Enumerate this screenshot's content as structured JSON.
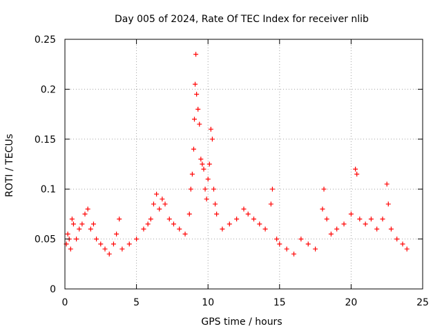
{
  "chart_data": {
    "type": "scatter",
    "title": "Day 005 of 2024, Rate Of TEC Index for receiver nlib",
    "xlabel": "GPS time / hours",
    "ylabel": "ROTI / TECUs",
    "xlim": [
      0,
      25
    ],
    "ylim": [
      0,
      0.25
    ],
    "xticks": [
      0,
      5,
      10,
      15,
      20,
      25
    ],
    "xtick_labels": [
      "0",
      "5",
      "10",
      "15",
      "20",
      "25"
    ],
    "yticks": [
      0,
      0.05,
      0.1,
      0.15,
      0.2,
      0.25
    ],
    "ytick_labels": [
      "0",
      "0.05",
      "0.1",
      "0.15",
      "0.2",
      "0.25"
    ],
    "grid": true,
    "marker": "+",
    "color": "#ff0000",
    "series": [
      {
        "name": "ROTI",
        "points": [
          [
            0.1,
            0.045
          ],
          [
            0.2,
            0.055
          ],
          [
            0.3,
            0.05
          ],
          [
            0.4,
            0.04
          ],
          [
            0.5,
            0.07
          ],
          [
            0.6,
            0.065
          ],
          [
            0.8,
            0.05
          ],
          [
            1.0,
            0.06
          ],
          [
            1.2,
            0.065
          ],
          [
            1.4,
            0.075
          ],
          [
            1.6,
            0.08
          ],
          [
            1.8,
            0.06
          ],
          [
            2.0,
            0.065
          ],
          [
            2.2,
            0.05
          ],
          [
            2.5,
            0.045
          ],
          [
            2.8,
            0.04
          ],
          [
            3.1,
            0.035
          ],
          [
            3.4,
            0.045
          ],
          [
            3.6,
            0.055
          ],
          [
            3.8,
            0.07
          ],
          [
            4.0,
            0.04
          ],
          [
            4.5,
            0.045
          ],
          [
            5.0,
            0.05
          ],
          [
            5.5,
            0.06
          ],
          [
            5.8,
            0.065
          ],
          [
            6.0,
            0.07
          ],
          [
            6.2,
            0.085
          ],
          [
            6.4,
            0.095
          ],
          [
            6.6,
            0.08
          ],
          [
            6.8,
            0.09
          ],
          [
            7.0,
            0.085
          ],
          [
            7.3,
            0.07
          ],
          [
            7.6,
            0.065
          ],
          [
            8.0,
            0.06
          ],
          [
            8.4,
            0.055
          ],
          [
            8.7,
            0.075
          ],
          [
            8.8,
            0.1
          ],
          [
            8.9,
            0.115
          ],
          [
            9.0,
            0.14
          ],
          [
            9.05,
            0.17
          ],
          [
            9.1,
            0.205
          ],
          [
            9.15,
            0.235
          ],
          [
            9.2,
            0.195
          ],
          [
            9.3,
            0.18
          ],
          [
            9.4,
            0.165
          ],
          [
            9.5,
            0.13
          ],
          [
            9.6,
            0.125
          ],
          [
            9.7,
            0.12
          ],
          [
            9.8,
            0.1
          ],
          [
            9.9,
            0.09
          ],
          [
            10.0,
            0.11
          ],
          [
            10.1,
            0.125
          ],
          [
            10.2,
            0.16
          ],
          [
            10.3,
            0.15
          ],
          [
            10.4,
            0.1
          ],
          [
            10.5,
            0.085
          ],
          [
            10.6,
            0.075
          ],
          [
            11.0,
            0.06
          ],
          [
            11.5,
            0.065
          ],
          [
            12.0,
            0.07
          ],
          [
            12.5,
            0.08
          ],
          [
            12.8,
            0.075
          ],
          [
            13.2,
            0.07
          ],
          [
            13.6,
            0.065
          ],
          [
            14.0,
            0.06
          ],
          [
            14.4,
            0.085
          ],
          [
            14.5,
            0.1
          ],
          [
            14.8,
            0.05
          ],
          [
            15.0,
            0.045
          ],
          [
            15.5,
            0.04
          ],
          [
            16.0,
            0.035
          ],
          [
            16.5,
            0.05
          ],
          [
            17.0,
            0.045
          ],
          [
            17.5,
            0.04
          ],
          [
            18.0,
            0.08
          ],
          [
            18.1,
            0.1
          ],
          [
            18.3,
            0.07
          ],
          [
            18.6,
            0.055
          ],
          [
            19.0,
            0.06
          ],
          [
            19.5,
            0.065
          ],
          [
            20.0,
            0.075
          ],
          [
            20.3,
            0.12
          ],
          [
            20.4,
            0.115
          ],
          [
            20.6,
            0.07
          ],
          [
            21.0,
            0.065
          ],
          [
            21.4,
            0.07
          ],
          [
            21.8,
            0.06
          ],
          [
            22.2,
            0.07
          ],
          [
            22.5,
            0.105
          ],
          [
            22.6,
            0.085
          ],
          [
            22.8,
            0.06
          ],
          [
            23.2,
            0.05
          ],
          [
            23.6,
            0.045
          ],
          [
            23.9,
            0.04
          ]
        ]
      }
    ]
  }
}
